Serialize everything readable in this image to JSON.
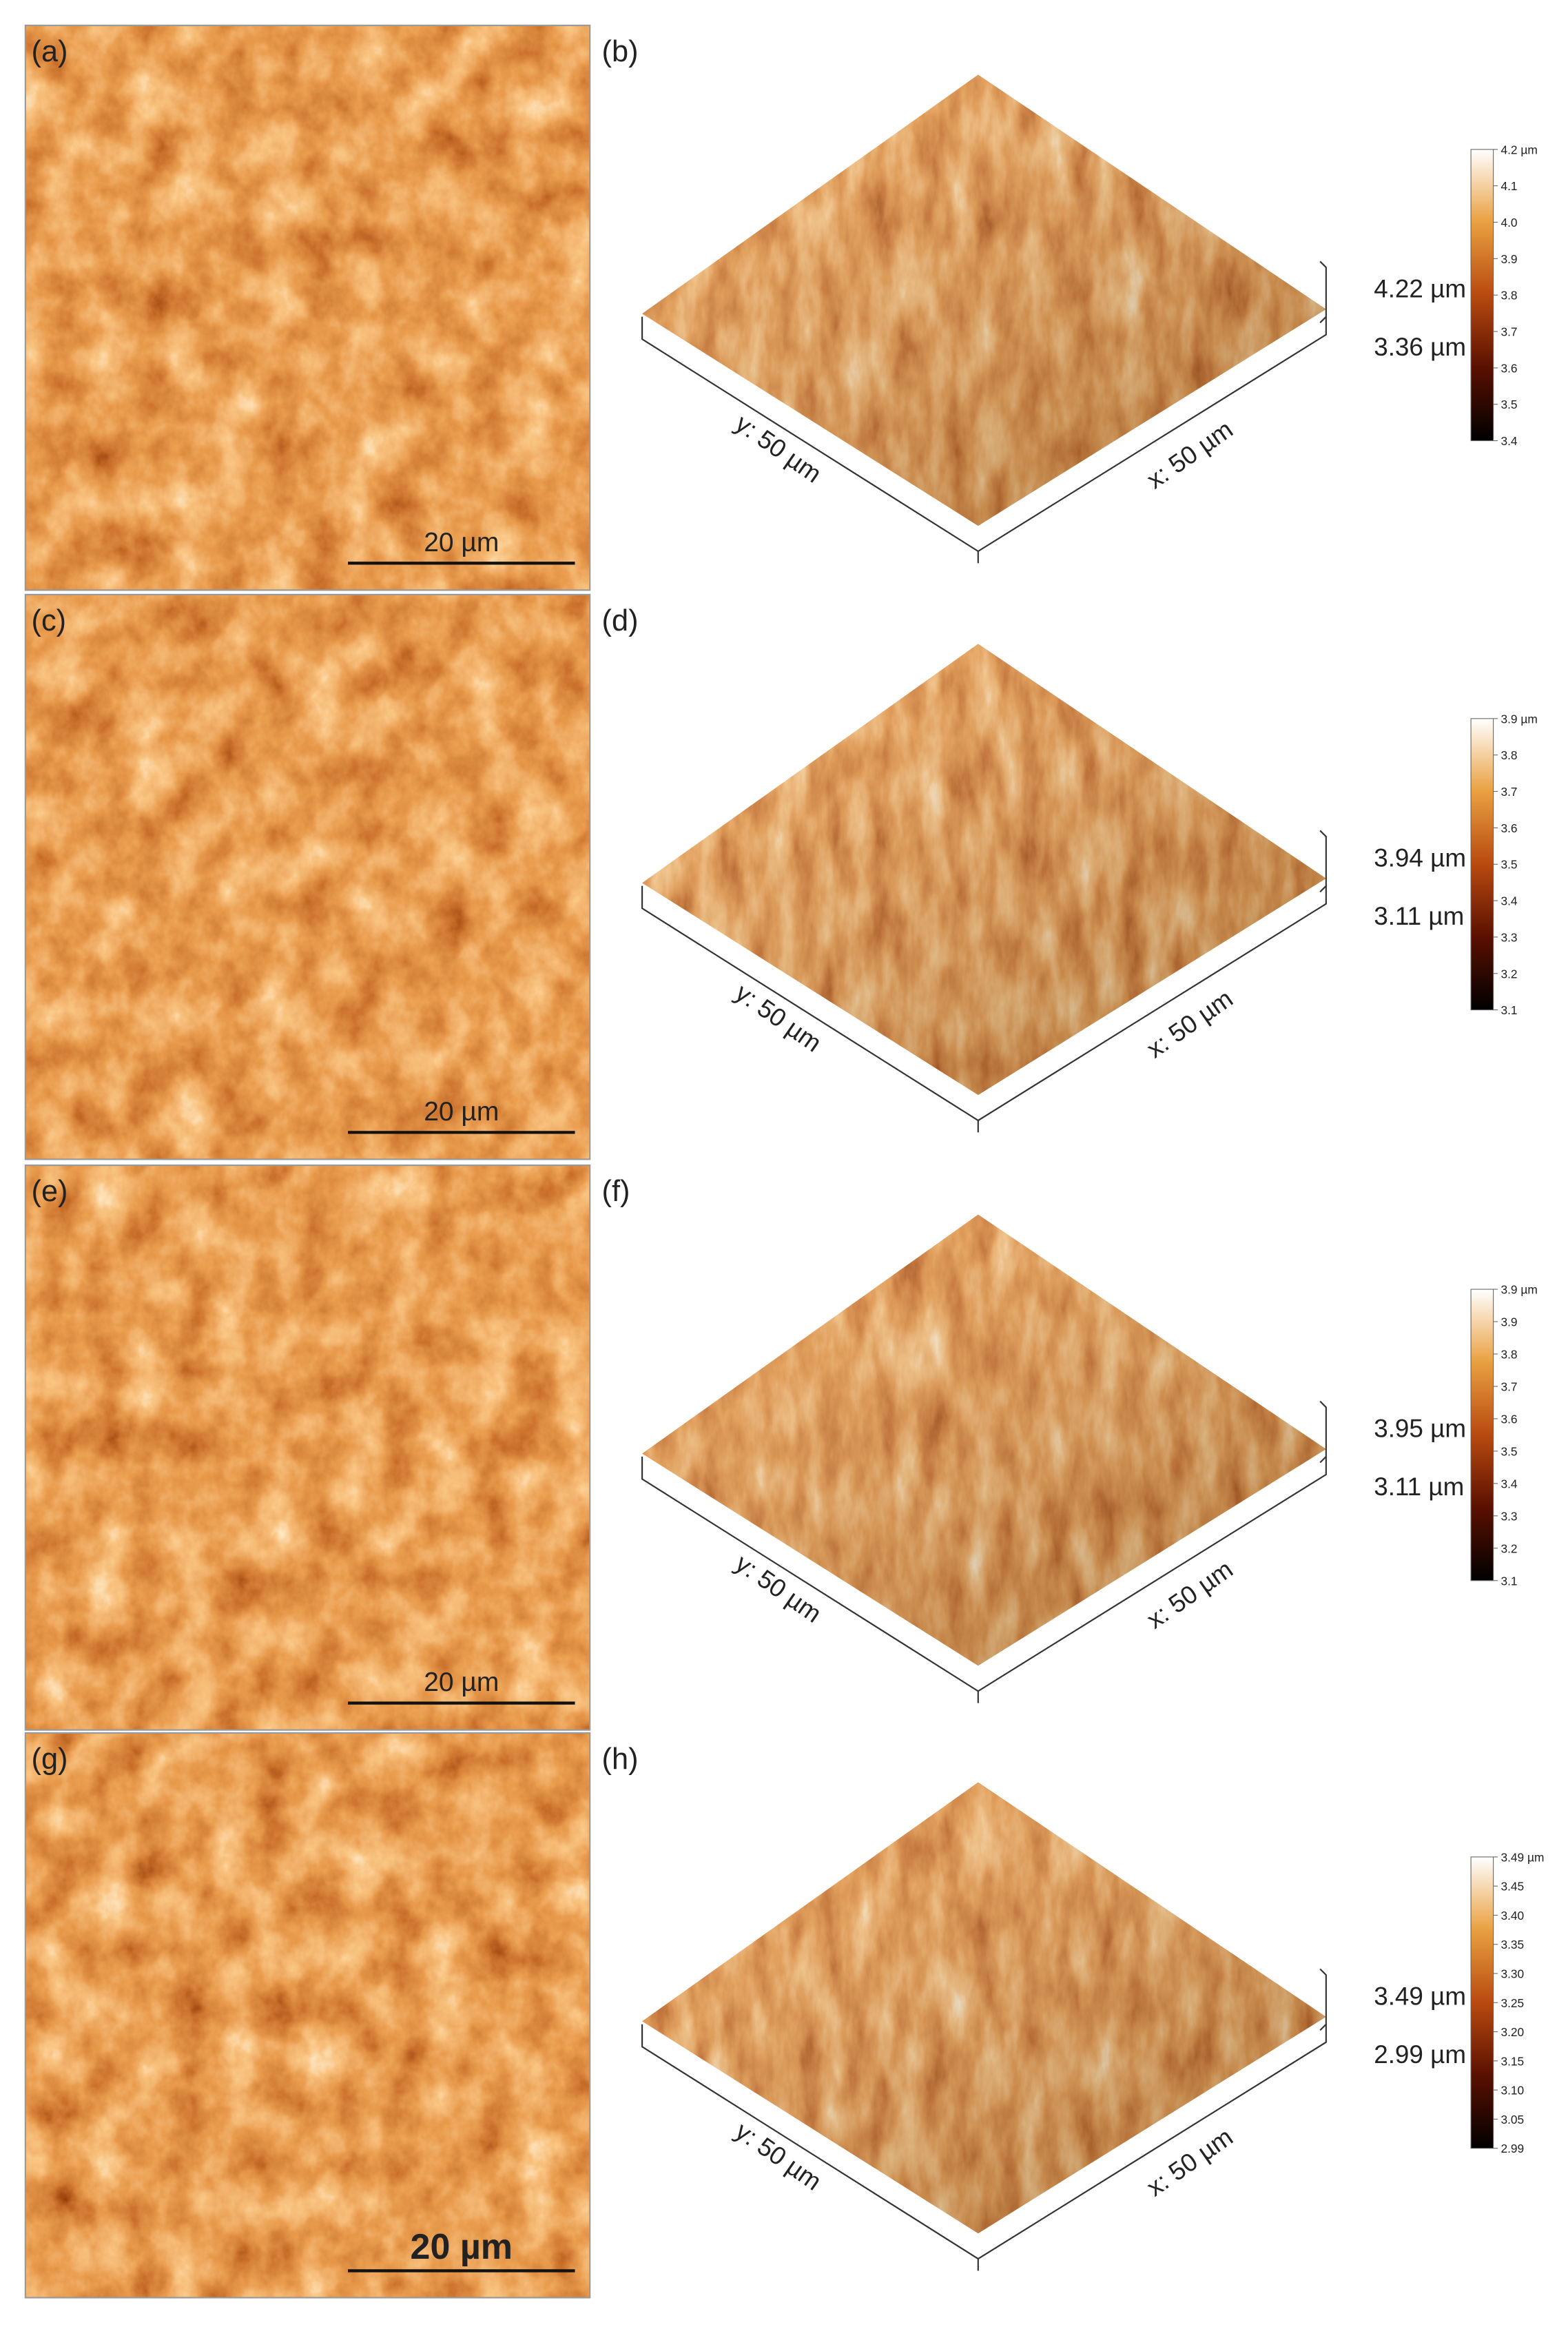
{
  "rows": [
    {
      "left": {
        "label": "(a)",
        "scale_bar": "20 µm"
      },
      "right": {
        "label": "(b)",
        "y_axis": "y: 50 µm",
        "x_axis": "x: 50 µm",
        "max_height": "4.22 µm",
        "min_height": "3.36 µm",
        "colorbar_ticks": [
          "4.2 µm",
          "4.1",
          "4.0",
          "3.9",
          "3.8",
          "3.7",
          "3.6",
          "3.5",
          "3.4"
        ]
      }
    },
    {
      "left": {
        "label": "(c)",
        "scale_bar": "20 µm"
      },
      "right": {
        "label": "(d)",
        "y_axis": "y: 50 µm",
        "x_axis": "x: 50 µm",
        "max_height": "3.94 µm",
        "min_height": "3.11 µm",
        "colorbar_ticks": [
          "3.9 µm",
          "3.8",
          "3.7",
          "3.6",
          "3.5",
          "3.4",
          "3.3",
          "3.2",
          "3.1"
        ]
      }
    },
    {
      "left": {
        "label": "(e)",
        "scale_bar": "20 µm"
      },
      "right": {
        "label": "(f)",
        "y_axis": "y: 50 µm",
        "x_axis": "x: 50 µm",
        "max_height": "3.95 µm",
        "min_height": "3.11 µm",
        "colorbar_ticks": [
          "3.9 µm",
          "3.9",
          "3.8",
          "3.7",
          "3.6",
          "3.5",
          "3.4",
          "3.3",
          "3.2",
          "3.1"
        ]
      }
    },
    {
      "left": {
        "label": "(g)",
        "scale_bar": "20 µm"
      },
      "right": {
        "label": "(h)",
        "y_axis": "y: 50 µm",
        "x_axis": "x: 50 µm",
        "max_height": "3.49 µm",
        "min_height": "2.99 µm",
        "colorbar_ticks": [
          "3.49 µm",
          "3.45",
          "3.40",
          "3.35",
          "3.30",
          "3.25",
          "3.20",
          "3.15",
          "3.10",
          "3.05",
          "2.99"
        ]
      }
    }
  ]
}
